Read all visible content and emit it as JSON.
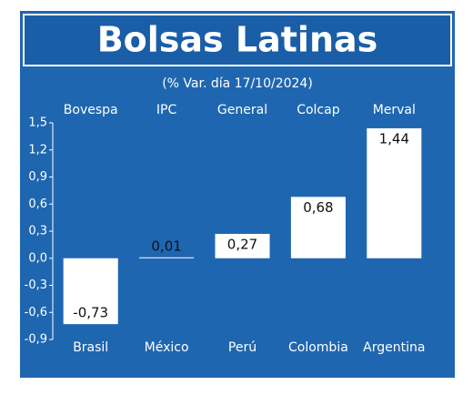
{
  "chart_data": {
    "type": "bar",
    "title": "Bolsas Latinas",
    "subtitle": "(% Var. día 17/10/2024)",
    "categories": [
      "Bovespa",
      "IPC",
      "General",
      "Colcap",
      "Merval"
    ],
    "countries": [
      "Brasil",
      "México",
      "Perú",
      "Colombia",
      "Argentina"
    ],
    "values": [
      -0.73,
      0.01,
      0.27,
      0.68,
      1.44
    ],
    "value_labels": [
      "-0,73",
      "0,01",
      "0,27",
      "0,68",
      "1,44"
    ],
    "color": "#ffffff",
    "ylim": [
      -0.9,
      1.5
    ],
    "yticks": [
      {
        "value": -0.9,
        "label": "-0,9"
      },
      {
        "value": -0.6,
        "label": "-0,6"
      },
      {
        "value": -0.3,
        "label": "-0,3"
      },
      {
        "value": 0,
        "label": "0,0"
      },
      {
        "value": 0.3,
        "label": "0,3"
      },
      {
        "value": 0.6,
        "label": "0,6"
      },
      {
        "value": 0.9,
        "label": "0,9"
      },
      {
        "value": 1.2,
        "label": "1,2"
      },
      {
        "value": 1.5,
        "label": "1,5"
      }
    ]
  }
}
